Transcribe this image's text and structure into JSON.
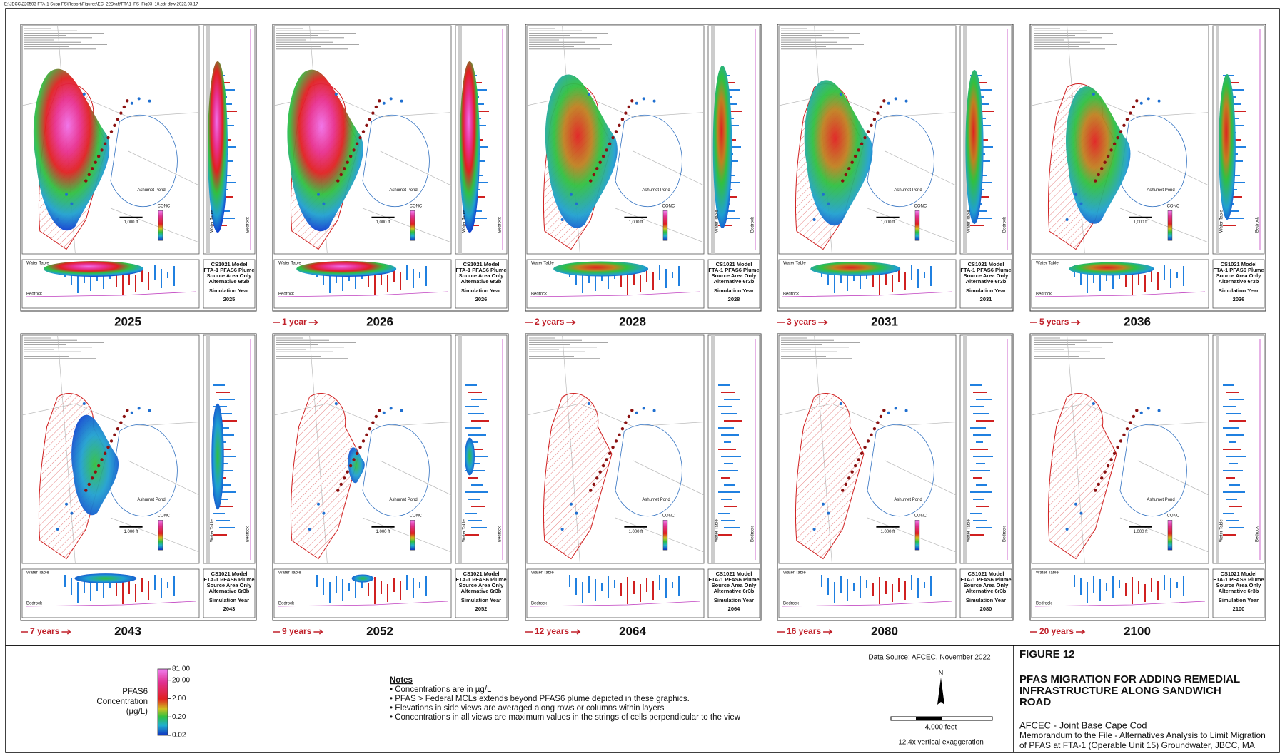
{
  "header": {
    "path": "E:\\JBCC\\220503 FTA-1 Supp FS\\Report\\Figures\\EC_22Draft\\FTA1_FS_Fig03_10.cdr  dbw 2023.03.17"
  },
  "panel_text": {
    "caption": [
      "CS1021 Model",
      "FTA-1 PFAS6 Plume",
      "Source Area Only",
      "Alternative 6r3b"
    ],
    "sim_label": "Simulation Year",
    "pond": "Ashumet Pond",
    "scale": "1,000 ft",
    "conc": "CONC",
    "water_table": "Water Table",
    "bedrock": "Bedrock"
  },
  "panels": [
    {
      "year": "2025",
      "interval": null
    },
    {
      "year": "2026",
      "interval": "1 year"
    },
    {
      "year": "2028",
      "interval": "2 years"
    },
    {
      "year": "2031",
      "interval": "3 years"
    },
    {
      "year": "2036",
      "interval": "5 years"
    },
    {
      "year": "2043",
      "interval": "7 years"
    },
    {
      "year": "2052",
      "interval": "9 years"
    },
    {
      "year": "2064",
      "interval": "12 years"
    },
    {
      "year": "2080",
      "interval": "16 years"
    },
    {
      "year": "2100",
      "interval": "20 years"
    }
  ],
  "legend": {
    "title": [
      "PFAS6",
      "Concentration",
      "(µg/L)"
    ],
    "log_scale": true,
    "lim": [
      0.02,
      81
    ],
    "ticks": [
      {
        "value": 81,
        "label": "81.00"
      },
      {
        "value": 20,
        "label": "20.00"
      },
      {
        "value": 2,
        "label": "2.00"
      },
      {
        "value": 0.2,
        "label": "0.20"
      },
      {
        "value": 0.02,
        "label": "0.02"
      }
    ]
  },
  "notes": {
    "title": "Notes",
    "items": [
      "• Concentrations are in µg/L",
      "• PFAS > Federal MCLs extends beyond PFAS6 plume depicted in these graphics.",
      "• Elevations in side views are averaged along rows or columns within layers",
      "• Concentrations in all views are maximum values in the strings of cells perpendicular to the view"
    ]
  },
  "map_info": {
    "source": "Data Source: AFCEC, November 2022",
    "north": "N",
    "scale": "4,000 feet",
    "exaggeration": "12.4x vertical exaggeration"
  },
  "title_block": {
    "figure": "FIGURE 12",
    "title": [
      "PFAS MIGRATION FOR ADDING REMEDIAL",
      "INFRASTRUCTURE ALONG SANDWICH",
      "ROAD"
    ],
    "client": "AFCEC - Joint Base Cape Cod",
    "memo": [
      "Memorandum to the File - Alternatives Analysis to Limit Migration",
      "of PFAS at FTA-1 (Operable Unit 15) Groundwater, JBCC, MA"
    ]
  }
}
